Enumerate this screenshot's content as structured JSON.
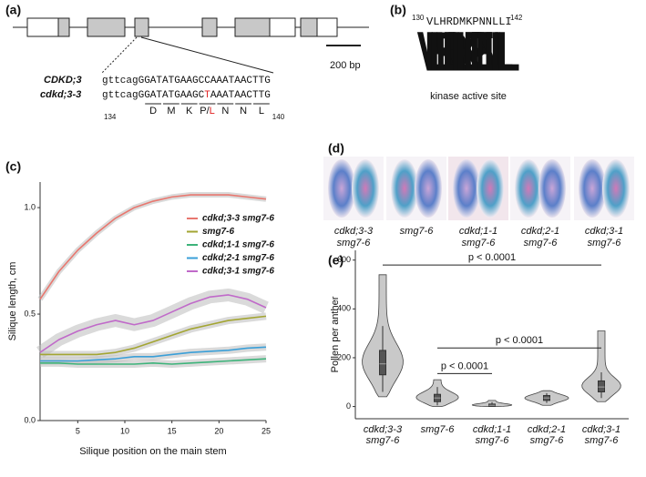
{
  "panel_labels": [
    "(a)",
    "(b)",
    "(c)",
    "(d)",
    "(e)"
  ],
  "gene_model": {
    "scale_bar": "200 bp",
    "wild_type": {
      "name": "CDKD;3",
      "sequence": "gttcagGGATATGAAGCCAAATAACTTG"
    },
    "mutant": {
      "name": "cdkd;3-3",
      "sequence": [
        "gttcagGGATATGAAGC",
        "T",
        "AAATAACTTG"
      ]
    },
    "residue_start": "134",
    "residues": [
      "D",
      "M",
      "K",
      [
        "P/",
        "L"
      ],
      "N",
      "N",
      "L"
    ],
    "residue_end": "140"
  },
  "kinase_site": {
    "start": "130",
    "sequence": "VLHRDMKPNNLLI",
    "end": "142",
    "logo": [
      "V",
      "L",
      "H",
      "R",
      "D",
      "L",
      "K",
      "P",
      "E",
      "N",
      "L",
      "L",
      "L"
    ],
    "caption": "kinase active site"
  },
  "images": [
    {
      "label": [
        "cdkd;3-3",
        "smg7-6"
      ]
    },
    {
      "label": [
        "smg7-6"
      ]
    },
    {
      "label": [
        "cdkd;1-1",
        "smg7-6"
      ]
    },
    {
      "label": [
        "cdkd;2-1",
        "smg7-6"
      ]
    },
    {
      "label": [
        "cdkd;3-1",
        "smg7-6"
      ]
    }
  ],
  "chart_data": [
    {
      "type": "line",
      "x_label": "Silique position on the main stem",
      "y_label": "Silique length, cm",
      "x": [
        1,
        3,
        5,
        7,
        9,
        11,
        13,
        15,
        17,
        19,
        21,
        23,
        25
      ],
      "xlim": [
        1,
        25
      ],
      "xticks": [
        5,
        10,
        15,
        20,
        25
      ],
      "ylim": [
        0,
        1.12
      ],
      "yticks": [
        {
          "value": 0,
          "label": "0.0"
        },
        {
          "value": 0.5,
          "label": "0.5"
        },
        {
          "value": 1,
          "label": "1.0"
        }
      ],
      "series": [
        {
          "name": "cdkd;3-3 smg7-6",
          "color": "#e8776f",
          "values": [
            0.57,
            0.7,
            0.8,
            0.88,
            0.95,
            1.0,
            1.03,
            1.05,
            1.06,
            1.06,
            1.06,
            1.05,
            1.04
          ]
        },
        {
          "name": "smg7-6",
          "color": "#a3a532",
          "values": [
            0.31,
            0.31,
            0.31,
            0.31,
            0.32,
            0.34,
            0.37,
            0.4,
            0.43,
            0.45,
            0.47,
            0.48,
            0.49
          ]
        },
        {
          "name": "cdkd;1-1 smg7-6",
          "color": "#3db37a",
          "values": [
            0.27,
            0.27,
            0.265,
            0.265,
            0.265,
            0.265,
            0.27,
            0.265,
            0.27,
            0.275,
            0.28,
            0.285,
            0.29
          ]
        },
        {
          "name": "cdkd;2-1 smg7-6",
          "color": "#3a9fd8",
          "values": [
            0.28,
            0.28,
            0.28,
            0.285,
            0.29,
            0.3,
            0.3,
            0.31,
            0.32,
            0.325,
            0.33,
            0.34,
            0.345
          ]
        },
        {
          "name": "cdkd;3-1 smg7-6",
          "color": "#c06ac9",
          "values": [
            0.32,
            0.38,
            0.42,
            0.45,
            0.47,
            0.45,
            0.47,
            0.51,
            0.55,
            0.58,
            0.59,
            0.57,
            0.53
          ]
        }
      ]
    },
    {
      "type": "violin",
      "y_label": "Pollen per anther",
      "categories": [
        [
          "cdkd;3-3",
          "smg7-6"
        ],
        [
          "smg7-6"
        ],
        [
          "cdkd;1-1",
          "smg7-6"
        ],
        [
          "cdkd;2-1",
          "smg7-6"
        ],
        [
          "cdkd;3-1",
          "smg7-6"
        ]
      ],
      "ylim": [
        -50,
        640
      ],
      "yticks": [
        0,
        200,
        400,
        600
      ],
      "min": [
        40,
        0,
        0,
        5,
        20
      ],
      "whisker_low": [
        60,
        5,
        0,
        15,
        35
      ],
      "q1": [
        130,
        20,
        2,
        25,
        60
      ],
      "median": [
        175,
        35,
        5,
        35,
        80
      ],
      "q3": [
        230,
        50,
        10,
        45,
        105
      ],
      "whisker_high": [
        330,
        80,
        18,
        55,
        140
      ],
      "max": [
        540,
        110,
        25,
        65,
        310
      ],
      "annotations": [
        {
          "text": "p < 0.0001",
          "from": 0,
          "to": 4,
          "y": 580
        },
        {
          "text": "p < 0.0001",
          "from": 1,
          "to": 4,
          "y": 240
        },
        {
          "text": "p < 0.0001",
          "from": 1,
          "to": 2,
          "y": 135
        }
      ]
    }
  ]
}
